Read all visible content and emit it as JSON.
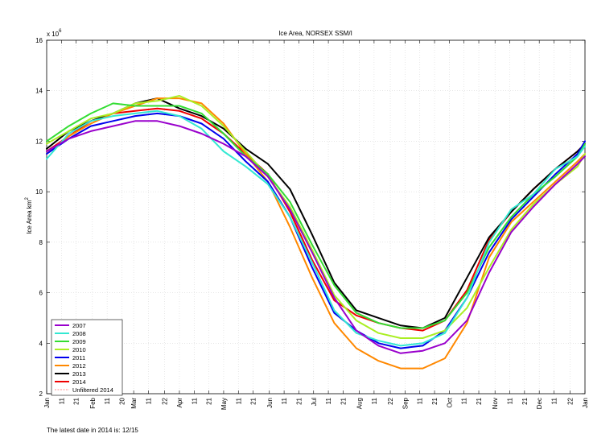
{
  "chart_data": {
    "type": "line",
    "title": "Ice Area, NORSEX SSM/I",
    "xlabel": "",
    "ylabel": "Ice Area km",
    "ylabel_superscript": "2",
    "y_exponent_label": "x 10",
    "y_exponent_power": "6",
    "ylim": [
      2,
      16
    ],
    "yticks": [
      2,
      4,
      6,
      8,
      10,
      12,
      14,
      16
    ],
    "xlim": [
      0,
      365
    ],
    "xticks": [
      {
        "doy": 0,
        "label": "Jan"
      },
      {
        "doy": 10,
        "label": "11"
      },
      {
        "doy": 20,
        "label": "21"
      },
      {
        "doy": 31,
        "label": "Feb"
      },
      {
        "doy": 41,
        "label": "11"
      },
      {
        "doy": 51,
        "label": "20"
      },
      {
        "doy": 59,
        "label": "Mar"
      },
      {
        "doy": 69,
        "label": "11"
      },
      {
        "doy": 80,
        "label": "22"
      },
      {
        "doy": 90,
        "label": "Apr"
      },
      {
        "doy": 100,
        "label": "11"
      },
      {
        "doy": 110,
        "label": "21"
      },
      {
        "doy": 120,
        "label": "May"
      },
      {
        "doy": 130,
        "label": "11"
      },
      {
        "doy": 140,
        "label": "21"
      },
      {
        "doy": 151,
        "label": "Jun"
      },
      {
        "doy": 161,
        "label": "11"
      },
      {
        "doy": 171,
        "label": "21"
      },
      {
        "doy": 181,
        "label": "Jul"
      },
      {
        "doy": 191,
        "label": "11"
      },
      {
        "doy": 201,
        "label": "21"
      },
      {
        "doy": 212,
        "label": "Aug"
      },
      {
        "doy": 222,
        "label": "11"
      },
      {
        "doy": 233,
        "label": "22"
      },
      {
        "doy": 243,
        "label": "Sep"
      },
      {
        "doy": 253,
        "label": "11"
      },
      {
        "doy": 263,
        "label": "21"
      },
      {
        "doy": 273,
        "label": "Oct"
      },
      {
        "doy": 283,
        "label": "11"
      },
      {
        "doy": 293,
        "label": "21"
      },
      {
        "doy": 304,
        "label": "Nov"
      },
      {
        "doy": 314,
        "label": "11"
      },
      {
        "doy": 324,
        "label": "21"
      },
      {
        "doy": 334,
        "label": "Dec"
      },
      {
        "doy": 344,
        "label": "11"
      },
      {
        "doy": 355,
        "label": "22"
      },
      {
        "doy": 365,
        "label": "Jan"
      }
    ],
    "grid": true,
    "legend_position": "bottom-left",
    "x": [
      0,
      15,
      30,
      45,
      60,
      75,
      90,
      105,
      120,
      135,
      150,
      165,
      180,
      195,
      210,
      225,
      240,
      255,
      270,
      285,
      300,
      315,
      330,
      345,
      360,
      365
    ],
    "series": [
      {
        "name": "2007",
        "color": "#9900cc",
        "width": 2,
        "values": [
          11.6,
          12.1,
          12.4,
          12.6,
          12.8,
          12.8,
          12.6,
          12.3,
          11.9,
          11.4,
          10.6,
          9.3,
          7.6,
          5.8,
          4.5,
          3.9,
          3.6,
          3.7,
          4.0,
          4.9,
          6.8,
          8.4,
          9.4,
          10.3,
          11.1,
          11.4
        ]
      },
      {
        "name": "2008",
        "color": "#33e8d2",
        "width": 2,
        "values": [
          11.3,
          12.3,
          12.8,
          13.0,
          13.1,
          13.2,
          13.0,
          12.5,
          11.6,
          11.0,
          10.3,
          9.0,
          7.2,
          5.3,
          4.4,
          4.1,
          3.9,
          4.0,
          4.4,
          5.8,
          8.0,
          9.3,
          9.9,
          10.9,
          11.4,
          11.8
        ]
      },
      {
        "name": "2009",
        "color": "#33dd33",
        "width": 2,
        "values": [
          12.0,
          12.6,
          13.1,
          13.5,
          13.4,
          13.4,
          13.4,
          13.1,
          12.3,
          11.4,
          10.7,
          9.6,
          7.9,
          6.3,
          5.2,
          4.8,
          4.6,
          4.6,
          4.9,
          6.0,
          7.8,
          9.0,
          9.9,
          10.6,
          11.4,
          11.9
        ]
      },
      {
        "name": "2010",
        "color": "#aaee22",
        "width": 2,
        "values": [
          11.9,
          12.4,
          12.9,
          13.1,
          13.5,
          13.6,
          13.8,
          13.4,
          12.6,
          11.6,
          10.6,
          9.4,
          7.7,
          5.9,
          4.9,
          4.4,
          4.2,
          4.2,
          4.5,
          5.4,
          7.0,
          8.5,
          9.5,
          10.3,
          11.0,
          11.5
        ]
      },
      {
        "name": "2011",
        "color": "#0000ee",
        "width": 2,
        "values": [
          11.5,
          12.1,
          12.6,
          12.8,
          13.0,
          13.1,
          13.0,
          12.7,
          12.1,
          11.2,
          10.4,
          9.0,
          7.0,
          5.2,
          4.5,
          4.0,
          3.8,
          3.9,
          4.5,
          5.8,
          7.6,
          8.9,
          9.8,
          10.7,
          11.5,
          12.0
        ]
      },
      {
        "name": "2012",
        "color": "#ff8800",
        "width": 2,
        "values": [
          11.5,
          12.2,
          12.7,
          13.1,
          13.4,
          13.7,
          13.7,
          13.5,
          12.7,
          11.5,
          10.4,
          8.6,
          6.6,
          4.8,
          3.8,
          3.3,
          3.0,
          3.0,
          3.4,
          4.8,
          7.4,
          8.8,
          9.6,
          10.4,
          11.2,
          11.5
        ]
      },
      {
        "name": "2013",
        "color": "#000000",
        "width": 2,
        "values": [
          11.7,
          12.4,
          12.8,
          13.1,
          13.5,
          13.7,
          13.3,
          13.0,
          12.5,
          11.7,
          11.1,
          10.1,
          8.3,
          6.4,
          5.3,
          5.0,
          4.7,
          4.6,
          5.0,
          6.6,
          8.2,
          9.2,
          10.1,
          10.9,
          11.6,
          11.9
        ]
      },
      {
        "name": "2014",
        "color": "#ee0000",
        "width": 2,
        "values": [
          11.6,
          12.2,
          12.8,
          13.1,
          13.2,
          13.3,
          13.2,
          12.9,
          12.3,
          11.5,
          10.7,
          9.2,
          7.3,
          5.7,
          5.1,
          4.8,
          4.6,
          4.5,
          4.9,
          6.1,
          8.1,
          9.2,
          10.1,
          10.9,
          11.6,
          11.9
        ]
      },
      {
        "name": "Unfiltered 2014",
        "color": "#ff6666",
        "width": 0.8,
        "dashed": true,
        "values": [
          11.6,
          12.2,
          12.8,
          13.1,
          13.2,
          13.3,
          13.2,
          12.9,
          12.3,
          11.5,
          10.7,
          9.2,
          7.3,
          5.7,
          5.1,
          4.8,
          4.6,
          4.5,
          4.9,
          6.1,
          8.1,
          9.2,
          10.1,
          10.9,
          11.6,
          11.9
        ]
      }
    ]
  },
  "footnote": "The latest date in 2014 is: 12/15"
}
